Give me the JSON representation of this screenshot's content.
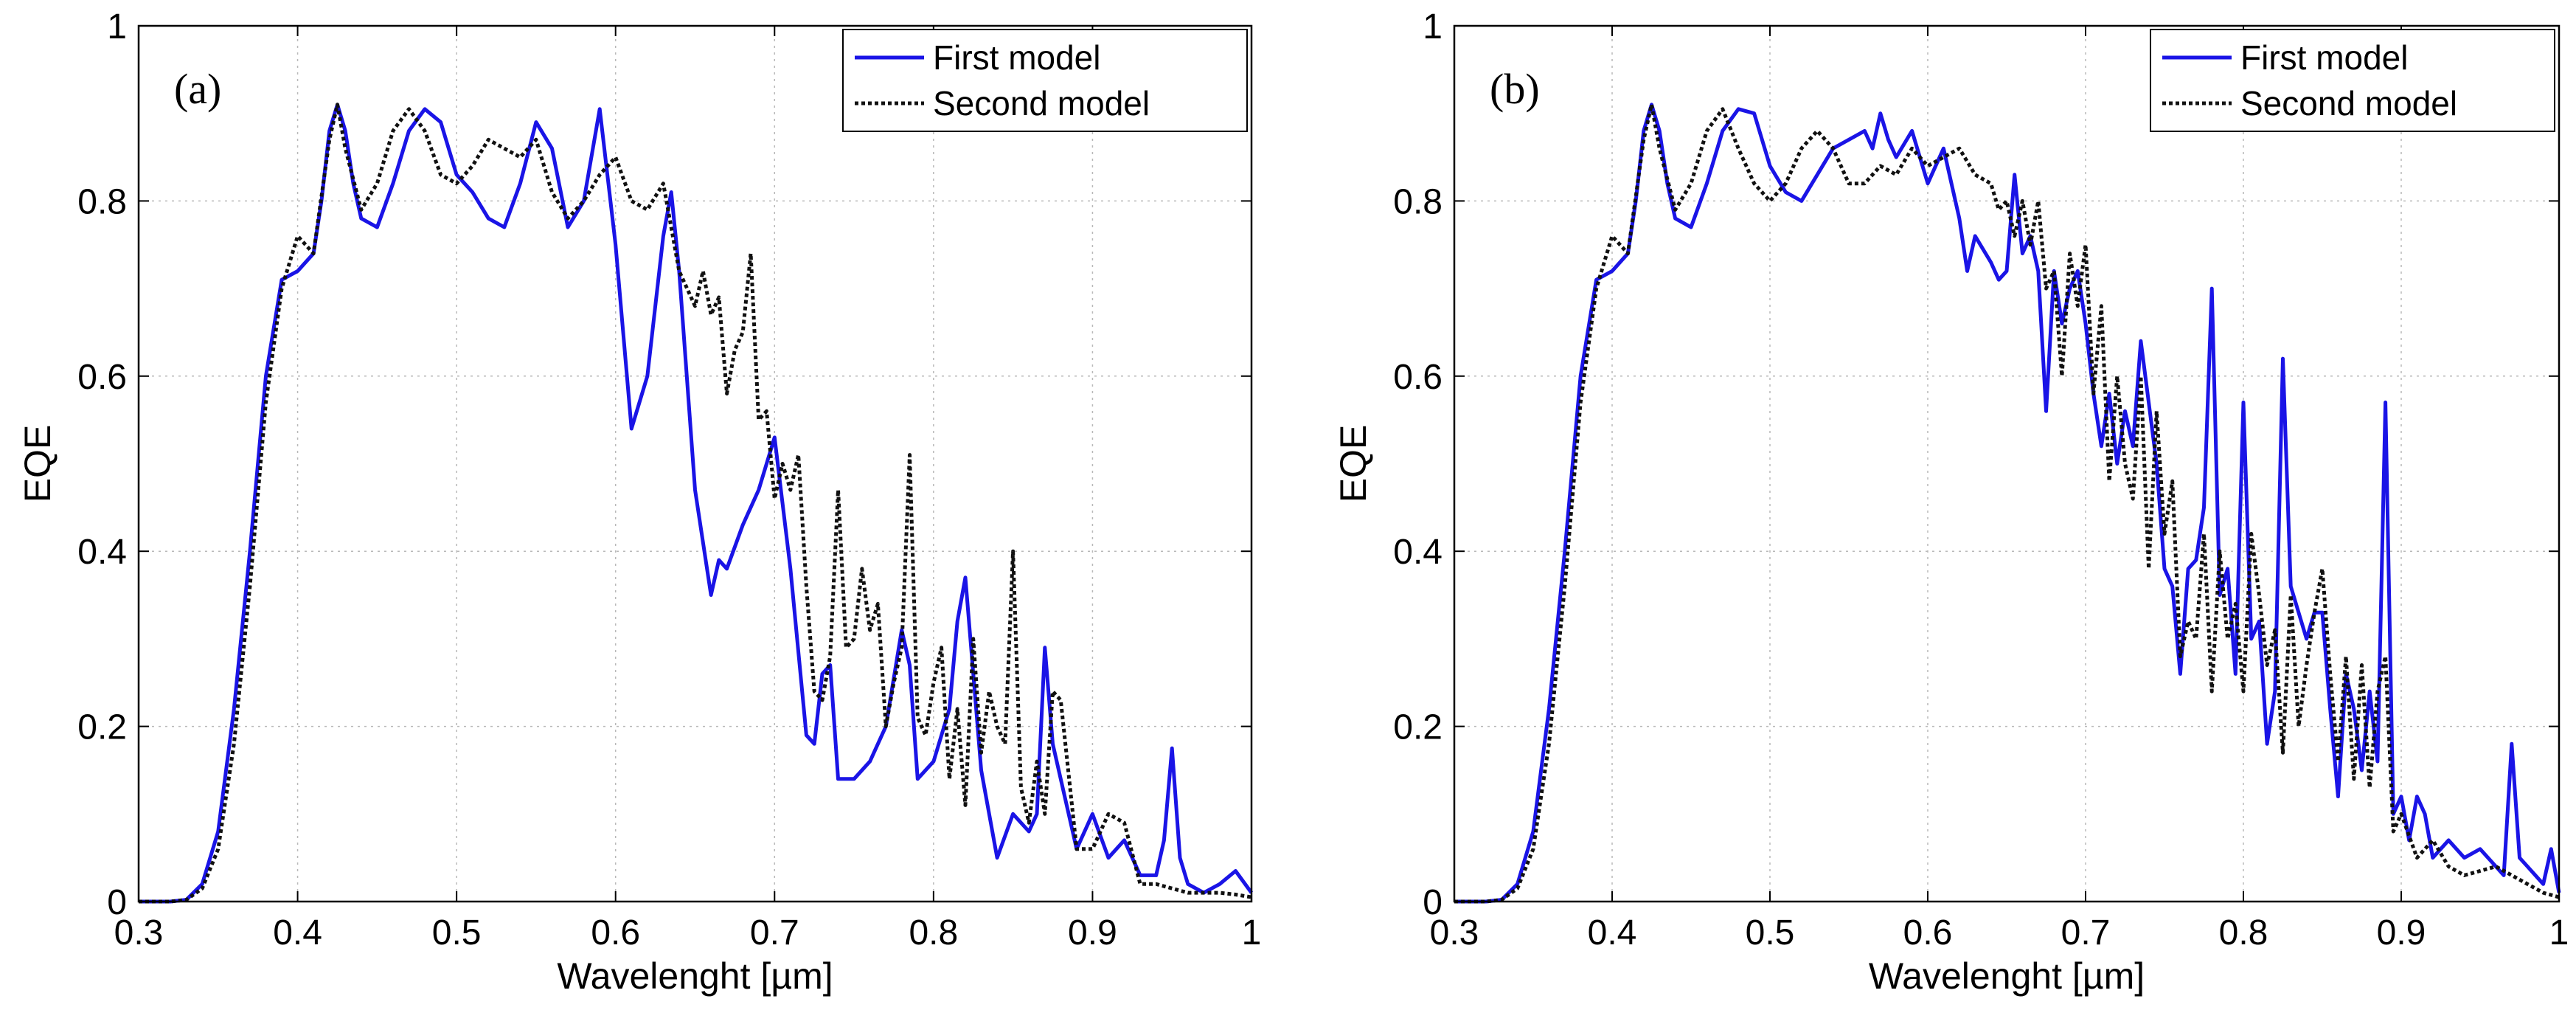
{
  "colors": {
    "first_model": "#1a14e6",
    "second_model": "#111111",
    "grid": "#b8b8b8",
    "axes": "#000000"
  },
  "chart_data": [
    {
      "type": "line",
      "panel_label": "(a)",
      "xlabel": "Wavelenght [µm]",
      "ylabel": "EQE",
      "xlim": [
        0.3,
        1.0
      ],
      "ylim": [
        0,
        1.0
      ],
      "xticks": [
        "0.3",
        "0.4",
        "0.5",
        "0.6",
        "0.7",
        "0.8",
        "0.9",
        "1"
      ],
      "yticks": [
        "0",
        "0.2",
        "0.4",
        "0.6",
        "0.8",
        "1"
      ],
      "grid": true,
      "legend_position": "top-right",
      "series": [
        {
          "name": "First model",
          "style": "solid",
          "x": [
            0.3,
            0.32,
            0.33,
            0.34,
            0.35,
            0.36,
            0.37,
            0.38,
            0.39,
            0.4,
            0.41,
            0.415,
            0.42,
            0.425,
            0.43,
            0.435,
            0.44,
            0.45,
            0.46,
            0.47,
            0.48,
            0.49,
            0.5,
            0.51,
            0.52,
            0.53,
            0.54,
            0.55,
            0.56,
            0.57,
            0.58,
            0.59,
            0.6,
            0.61,
            0.62,
            0.63,
            0.635,
            0.64,
            0.65,
            0.66,
            0.665,
            0.67,
            0.68,
            0.69,
            0.7,
            0.71,
            0.72,
            0.725,
            0.73,
            0.735,
            0.74,
            0.75,
            0.76,
            0.77,
            0.78,
            0.785,
            0.79,
            0.8,
            0.81,
            0.815,
            0.82,
            0.83,
            0.84,
            0.85,
            0.86,
            0.865,
            0.87,
            0.875,
            0.88,
            0.89,
            0.9,
            0.91,
            0.92,
            0.93,
            0.94,
            0.945,
            0.95,
            0.955,
            0.96,
            0.97,
            0.98,
            0.99,
            1.0
          ],
          "y": [
            0,
            0,
            0.002,
            0.02,
            0.08,
            0.22,
            0.4,
            0.6,
            0.71,
            0.72,
            0.74,
            0.8,
            0.88,
            0.91,
            0.88,
            0.82,
            0.78,
            0.77,
            0.82,
            0.88,
            0.905,
            0.89,
            0.83,
            0.81,
            0.78,
            0.77,
            0.82,
            0.89,
            0.86,
            0.77,
            0.8,
            0.905,
            0.75,
            0.54,
            0.6,
            0.76,
            0.81,
            0.72,
            0.47,
            0.35,
            0.39,
            0.38,
            0.43,
            0.47,
            0.53,
            0.38,
            0.19,
            0.18,
            0.26,
            0.27,
            0.14,
            0.14,
            0.16,
            0.2,
            0.31,
            0.27,
            0.14,
            0.16,
            0.22,
            0.32,
            0.37,
            0.15,
            0.05,
            0.1,
            0.08,
            0.1,
            0.29,
            0.18,
            0.14,
            0.06,
            0.1,
            0.05,
            0.07,
            0.03,
            0.03,
            0.07,
            0.175,
            0.05,
            0.02,
            0.01,
            0.02,
            0.035,
            0.01
          ]
        },
        {
          "name": "Second model",
          "style": "dotted",
          "x": [
            0.3,
            0.32,
            0.33,
            0.34,
            0.35,
            0.36,
            0.37,
            0.38,
            0.39,
            0.4,
            0.41,
            0.42,
            0.425,
            0.43,
            0.44,
            0.45,
            0.46,
            0.47,
            0.48,
            0.49,
            0.5,
            0.51,
            0.52,
            0.53,
            0.54,
            0.55,
            0.56,
            0.57,
            0.58,
            0.59,
            0.6,
            0.61,
            0.62,
            0.63,
            0.64,
            0.65,
            0.655,
            0.66,
            0.665,
            0.67,
            0.675,
            0.68,
            0.685,
            0.69,
            0.695,
            0.7,
            0.705,
            0.71,
            0.715,
            0.72,
            0.725,
            0.73,
            0.735,
            0.74,
            0.745,
            0.75,
            0.755,
            0.76,
            0.765,
            0.77,
            0.775,
            0.78,
            0.785,
            0.79,
            0.795,
            0.8,
            0.805,
            0.81,
            0.815,
            0.82,
            0.825,
            0.83,
            0.835,
            0.84,
            0.845,
            0.85,
            0.855,
            0.86,
            0.865,
            0.87,
            0.875,
            0.88,
            0.89,
            0.9,
            0.91,
            0.92,
            0.93,
            0.94,
            0.95,
            0.96,
            0.97,
            0.98,
            0.99,
            1.0
          ],
          "y": [
            0,
            0,
            0.002,
            0.015,
            0.06,
            0.18,
            0.36,
            0.57,
            0.7,
            0.76,
            0.74,
            0.87,
            0.91,
            0.86,
            0.79,
            0.82,
            0.88,
            0.905,
            0.88,
            0.83,
            0.82,
            0.84,
            0.87,
            0.86,
            0.85,
            0.87,
            0.81,
            0.78,
            0.8,
            0.83,
            0.85,
            0.8,
            0.79,
            0.82,
            0.72,
            0.68,
            0.72,
            0.67,
            0.69,
            0.58,
            0.63,
            0.65,
            0.74,
            0.55,
            0.56,
            0.46,
            0.5,
            0.47,
            0.51,
            0.36,
            0.24,
            0.23,
            0.28,
            0.47,
            0.29,
            0.3,
            0.38,
            0.31,
            0.34,
            0.2,
            0.25,
            0.29,
            0.51,
            0.21,
            0.19,
            0.25,
            0.29,
            0.14,
            0.22,
            0.11,
            0.3,
            0.17,
            0.24,
            0.2,
            0.18,
            0.4,
            0.13,
            0.09,
            0.16,
            0.1,
            0.24,
            0.23,
            0.06,
            0.06,
            0.1,
            0.09,
            0.02,
            0.02,
            0.015,
            0.01,
            0.01,
            0.01,
            0.008,
            0.005
          ]
        }
      ]
    },
    {
      "type": "line",
      "panel_label": "(b)",
      "xlabel": "Wavelenght [µm]",
      "ylabel": "EQE",
      "xlim": [
        0.3,
        1.0
      ],
      "ylim": [
        0,
        1.0
      ],
      "xticks": [
        "0.3",
        "0.4",
        "0.5",
        "0.6",
        "0.7",
        "0.8",
        "0.9",
        "1"
      ],
      "yticks": [
        "0",
        "0.2",
        "0.4",
        "0.6",
        "0.8",
        "1"
      ],
      "grid": true,
      "legend_position": "top-right",
      "series": [
        {
          "name": "First model",
          "style": "solid",
          "x": [
            0.3,
            0.32,
            0.33,
            0.34,
            0.35,
            0.36,
            0.37,
            0.38,
            0.39,
            0.4,
            0.41,
            0.415,
            0.42,
            0.425,
            0.43,
            0.435,
            0.44,
            0.45,
            0.46,
            0.47,
            0.48,
            0.49,
            0.5,
            0.51,
            0.52,
            0.53,
            0.54,
            0.55,
            0.56,
            0.565,
            0.57,
            0.575,
            0.58,
            0.59,
            0.6,
            0.61,
            0.62,
            0.625,
            0.63,
            0.64,
            0.645,
            0.65,
            0.655,
            0.66,
            0.665,
            0.67,
            0.675,
            0.68,
            0.685,
            0.69,
            0.695,
            0.7,
            0.705,
            0.71,
            0.715,
            0.72,
            0.725,
            0.73,
            0.735,
            0.74,
            0.745,
            0.75,
            0.755,
            0.76,
            0.765,
            0.77,
            0.775,
            0.78,
            0.785,
            0.79,
            0.795,
            0.8,
            0.805,
            0.81,
            0.815,
            0.82,
            0.825,
            0.83,
            0.835,
            0.84,
            0.845,
            0.85,
            0.855,
            0.86,
            0.865,
            0.87,
            0.875,
            0.88,
            0.885,
            0.89,
            0.895,
            0.9,
            0.905,
            0.91,
            0.915,
            0.92,
            0.93,
            0.94,
            0.95,
            0.96,
            0.965,
            0.97,
            0.975,
            0.98,
            0.99,
            0.995,
            1.0
          ],
          "y": [
            0,
            0,
            0.002,
            0.02,
            0.08,
            0.22,
            0.4,
            0.6,
            0.71,
            0.72,
            0.74,
            0.8,
            0.88,
            0.91,
            0.88,
            0.82,
            0.78,
            0.77,
            0.82,
            0.88,
            0.905,
            0.9,
            0.84,
            0.81,
            0.8,
            0.83,
            0.86,
            0.87,
            0.88,
            0.86,
            0.9,
            0.87,
            0.85,
            0.88,
            0.82,
            0.86,
            0.78,
            0.72,
            0.76,
            0.73,
            0.71,
            0.72,
            0.83,
            0.74,
            0.76,
            0.72,
            0.56,
            0.72,
            0.66,
            0.7,
            0.72,
            0.66,
            0.58,
            0.52,
            0.58,
            0.5,
            0.56,
            0.52,
            0.64,
            0.57,
            0.5,
            0.38,
            0.36,
            0.26,
            0.38,
            0.39,
            0.45,
            0.7,
            0.35,
            0.38,
            0.26,
            0.57,
            0.3,
            0.32,
            0.18,
            0.24,
            0.62,
            0.36,
            0.33,
            0.3,
            0.33,
            0.33,
            0.22,
            0.12,
            0.26,
            0.22,
            0.15,
            0.24,
            0.16,
            0.57,
            0.1,
            0.12,
            0.07,
            0.12,
            0.1,
            0.05,
            0.07,
            0.05,
            0.06,
            0.04,
            0.03,
            0.18,
            0.05,
            0.04,
            0.02,
            0.06,
            0.01
          ]
        },
        {
          "name": "Second model",
          "style": "dotted",
          "x": [
            0.3,
            0.32,
            0.33,
            0.34,
            0.35,
            0.36,
            0.37,
            0.38,
            0.39,
            0.4,
            0.41,
            0.42,
            0.425,
            0.43,
            0.44,
            0.45,
            0.46,
            0.47,
            0.48,
            0.49,
            0.5,
            0.51,
            0.52,
            0.53,
            0.54,
            0.55,
            0.56,
            0.57,
            0.58,
            0.59,
            0.6,
            0.61,
            0.62,
            0.63,
            0.64,
            0.645,
            0.65,
            0.655,
            0.66,
            0.665,
            0.67,
            0.675,
            0.68,
            0.685,
            0.69,
            0.695,
            0.7,
            0.705,
            0.71,
            0.715,
            0.72,
            0.725,
            0.73,
            0.735,
            0.74,
            0.745,
            0.75,
            0.755,
            0.76,
            0.765,
            0.77,
            0.775,
            0.78,
            0.785,
            0.79,
            0.795,
            0.8,
            0.805,
            0.81,
            0.815,
            0.82,
            0.825,
            0.83,
            0.835,
            0.84,
            0.845,
            0.85,
            0.855,
            0.86,
            0.865,
            0.87,
            0.875,
            0.88,
            0.885,
            0.89,
            0.895,
            0.9,
            0.91,
            0.92,
            0.93,
            0.94,
            0.95,
            0.96,
            0.97,
            0.98,
            0.99,
            1.0
          ],
          "y": [
            0,
            0,
            0.002,
            0.015,
            0.06,
            0.18,
            0.36,
            0.57,
            0.7,
            0.76,
            0.74,
            0.87,
            0.91,
            0.86,
            0.79,
            0.82,
            0.88,
            0.905,
            0.86,
            0.82,
            0.8,
            0.82,
            0.86,
            0.88,
            0.86,
            0.82,
            0.82,
            0.84,
            0.83,
            0.86,
            0.84,
            0.85,
            0.86,
            0.83,
            0.82,
            0.79,
            0.8,
            0.76,
            0.8,
            0.75,
            0.8,
            0.7,
            0.72,
            0.6,
            0.74,
            0.68,
            0.75,
            0.58,
            0.68,
            0.48,
            0.6,
            0.5,
            0.46,
            0.6,
            0.38,
            0.56,
            0.42,
            0.48,
            0.28,
            0.32,
            0.3,
            0.42,
            0.24,
            0.4,
            0.3,
            0.34,
            0.24,
            0.42,
            0.35,
            0.27,
            0.31,
            0.17,
            0.35,
            0.2,
            0.27,
            0.33,
            0.38,
            0.26,
            0.16,
            0.28,
            0.14,
            0.27,
            0.13,
            0.24,
            0.28,
            0.08,
            0.1,
            0.05,
            0.07,
            0.04,
            0.03,
            0.035,
            0.04,
            0.03,
            0.02,
            0.01,
            0.005
          ]
        }
      ]
    }
  ]
}
